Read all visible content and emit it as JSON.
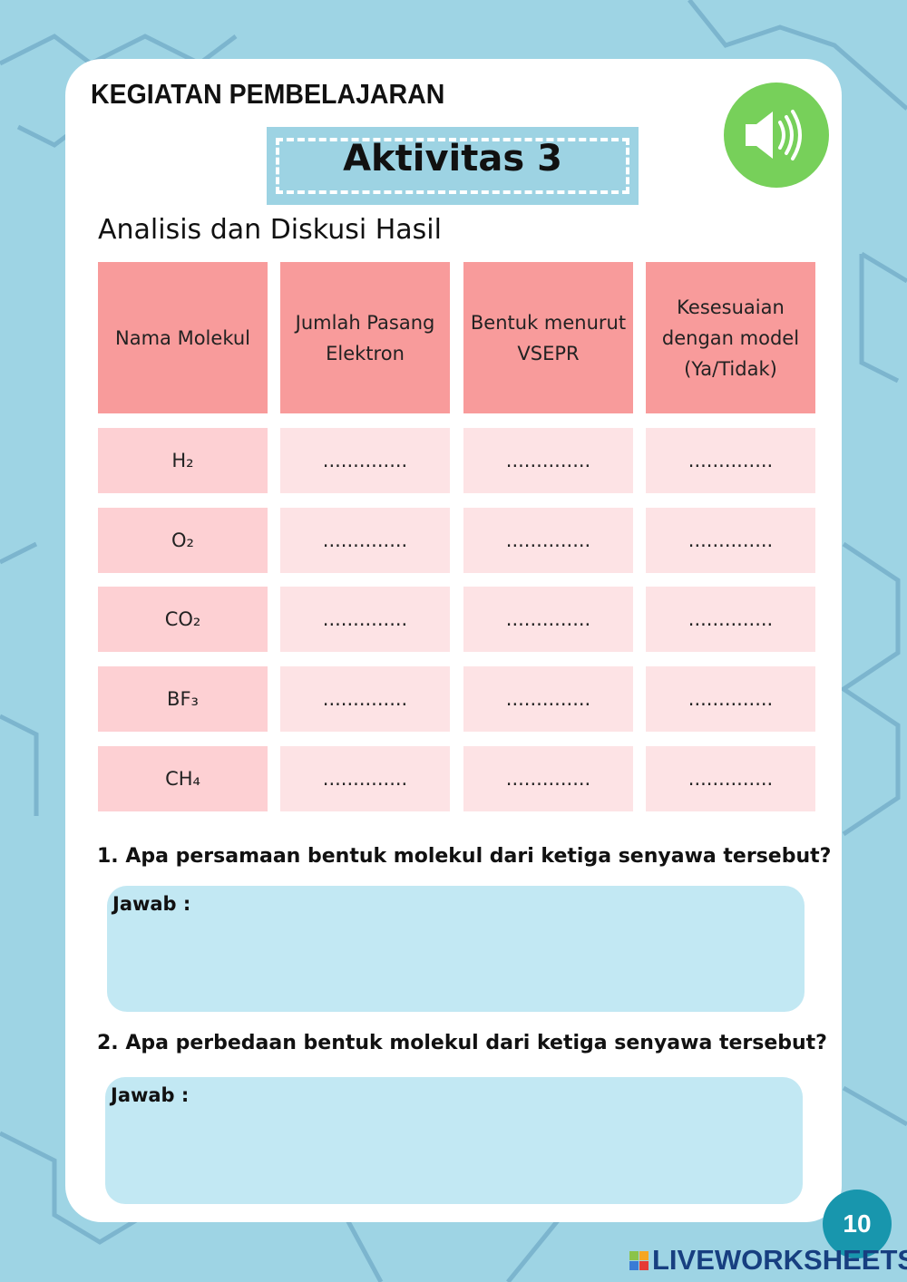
{
  "header": {
    "kicker": "KEGIATAN PEMBELAJARAN",
    "activity": "Aktivitas 3",
    "subtitle": "Analisis dan Diskusi Hasil",
    "audio_icon": "speaker-icon"
  },
  "table": {
    "headers": [
      "Nama Molekul",
      "Jumlah Pasang Elektron",
      "Bentuk menurut VSEPR",
      "Kesesuaian dengan model (Ya/Tidak)"
    ],
    "rows": [
      [
        "H₂",
        "..............",
        "..............",
        ".............."
      ],
      [
        "O₂",
        "..............",
        "..............",
        ".............."
      ],
      [
        "CO₂",
        "..............",
        "..............",
        ".............."
      ],
      [
        "BF₃",
        "..............",
        "..............",
        ".............."
      ],
      [
        "CH₄",
        "..............",
        "..............",
        ".............."
      ]
    ]
  },
  "questions": [
    {
      "text": "1. Apa persamaan bentuk molekul dari ketiga senyawa tersebut?",
      "answer_label": "Jawab :"
    },
    {
      "text": "2. Apa perbedaan bentuk molekul dari ketiga senyawa tersebut?",
      "answer_label": "Jawab :"
    }
  ],
  "footer": {
    "page": "10",
    "brand": "LIVEWORKSHEETS"
  },
  "colors": {
    "background": "#9ed4e4",
    "header_cell": "#f89b9b",
    "first_col": "#fdd0d3",
    "cell": "#fde3e5",
    "answer_box": "#c2e8f3",
    "audio": "#77d05a",
    "page_badge": "#1896ad"
  }
}
